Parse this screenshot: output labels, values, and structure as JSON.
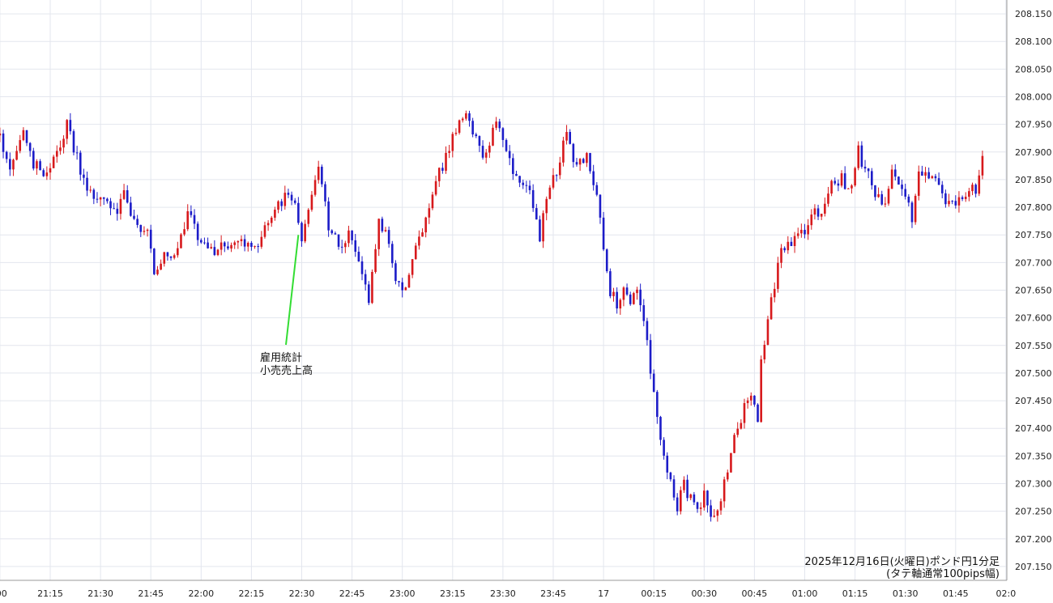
{
  "chart_data": {
    "type": "candlestick",
    "title": "2025年12月16日(火曜日)ポンド円1分足",
    "subtitle": "(タテ軸通常100pips幅)",
    "ylim": [
      207.125,
      208.175
    ],
    "y_ticks": [
      207.15,
      207.2,
      207.25,
      207.3,
      207.35,
      207.4,
      207.45,
      207.5,
      207.55,
      207.6,
      207.65,
      207.7,
      207.75,
      207.8,
      207.85,
      207.9,
      207.95,
      208.0,
      208.05,
      208.1,
      208.15
    ],
    "y_tick_labels": [
      "207.150",
      "207.200",
      "207.250",
      "207.300",
      "207.350",
      "207.400",
      "207.450",
      "207.500",
      "207.550",
      "207.600",
      "207.650",
      "207.700",
      "207.750",
      "207.800",
      "207.850",
      "207.900",
      "207.950",
      "208.000",
      "208.050",
      "208.100",
      "208.150"
    ],
    "x_ticks": [
      {
        "label": ":00",
        "t": -15
      },
      {
        "label": "21:15",
        "t": 0
      },
      {
        "label": "21:30",
        "t": 15
      },
      {
        "label": "21:45",
        "t": 30
      },
      {
        "label": "22:00",
        "t": 45
      },
      {
        "label": "22:15",
        "t": 60
      },
      {
        "label": "22:30",
        "t": 75
      },
      {
        "label": "22:45",
        "t": 90
      },
      {
        "label": "23:00",
        "t": 105
      },
      {
        "label": "23:15",
        "t": 120
      },
      {
        "label": "23:30",
        "t": 135
      },
      {
        "label": "23:45",
        "t": 150
      },
      {
        "label": "17",
        "t": 165
      },
      {
        "label": "00:15",
        "t": 180
      },
      {
        "label": "00:30",
        "t": 195
      },
      {
        "label": "00:45",
        "t": 210
      },
      {
        "label": "01:00",
        "t": 225
      },
      {
        "label": "01:15",
        "t": 240
      },
      {
        "label": "01:30",
        "t": 255
      },
      {
        "label": "01:45",
        "t": 270
      },
      {
        "label": "02:0",
        "t": 285
      }
    ],
    "annotation": {
      "lines": [
        "雇用統計",
        "小売売上高"
      ],
      "t": 74,
      "price": 207.75
    },
    "colors": {
      "up": "#d7191c",
      "down": "#1c1cc8",
      "grid": "#e3e6ee",
      "annotation_line": "#33dd33",
      "axis": "#9a9a9a"
    },
    "price_path": [
      [
        -15,
        207.93
      ],
      [
        -12,
        207.87
      ],
      [
        -8,
        207.93
      ],
      [
        -5,
        207.88
      ],
      [
        -2,
        207.86
      ],
      [
        1,
        207.89
      ],
      [
        5,
        207.95
      ],
      [
        7,
        207.91
      ],
      [
        10,
        207.85
      ],
      [
        12,
        207.82
      ],
      [
        17,
        207.81
      ],
      [
        20,
        207.8
      ],
      [
        22,
        207.83
      ],
      [
        25,
        207.77
      ],
      [
        29,
        207.75
      ],
      [
        31,
        207.69
      ],
      [
        35,
        207.72
      ],
      [
        38,
        207.72
      ],
      [
        41,
        207.79
      ],
      [
        44,
        207.75
      ],
      [
        49,
        207.72
      ],
      [
        55,
        207.74
      ],
      [
        60,
        207.72
      ],
      [
        63,
        207.75
      ],
      [
        67,
        207.79
      ],
      [
        71,
        207.83
      ],
      [
        73,
        207.8
      ],
      [
        75,
        207.74
      ],
      [
        78,
        207.83
      ],
      [
        80,
        207.88
      ],
      [
        83,
        207.76
      ],
      [
        86,
        207.73
      ],
      [
        89,
        207.75
      ],
      [
        92,
        207.7
      ],
      [
        95,
        207.63
      ],
      [
        98,
        207.78
      ],
      [
        101,
        207.74
      ],
      [
        103,
        207.67
      ],
      [
        106,
        207.65
      ],
      [
        109,
        207.72
      ],
      [
        112,
        207.78
      ],
      [
        116,
        207.86
      ],
      [
        120,
        207.93
      ],
      [
        123,
        207.97
      ],
      [
        127,
        207.93
      ],
      [
        129,
        207.88
      ],
      [
        133,
        207.95
      ],
      [
        135,
        207.93
      ],
      [
        137,
        207.88
      ],
      [
        140,
        207.85
      ],
      [
        143,
        207.82
      ],
      [
        146,
        207.75
      ],
      [
        149,
        207.84
      ],
      [
        151,
        207.87
      ],
      [
        154,
        207.93
      ],
      [
        157,
        207.87
      ],
      [
        160,
        207.9
      ],
      [
        163,
        207.82
      ],
      [
        165,
        207.72
      ],
      [
        167,
        207.65
      ],
      [
        169,
        207.62
      ],
      [
        171,
        207.65
      ],
      [
        173,
        207.62
      ],
      [
        175,
        207.66
      ],
      [
        177,
        207.6
      ],
      [
        179,
        207.5
      ],
      [
        181,
        207.42
      ],
      [
        183,
        207.35
      ],
      [
        185,
        207.3
      ],
      [
        187,
        207.26
      ],
      [
        189,
        207.3
      ],
      [
        191,
        207.27
      ],
      [
        193,
        207.25
      ],
      [
        195,
        207.28
      ],
      [
        197,
        207.23
      ],
      [
        199,
        207.26
      ],
      [
        201,
        207.3
      ],
      [
        203,
        207.36
      ],
      [
        205,
        207.4
      ],
      [
        207,
        207.44
      ],
      [
        209,
        207.47
      ],
      [
        211,
        207.42
      ],
      [
        212,
        207.52
      ],
      [
        214,
        207.6
      ],
      [
        216,
        207.66
      ],
      [
        218,
        207.72
      ],
      [
        221,
        207.74
      ],
      [
        224,
        207.75
      ],
      [
        227,
        207.78
      ],
      [
        230,
        207.8
      ],
      [
        233,
        207.84
      ],
      [
        236,
        207.85
      ],
      [
        239,
        207.83
      ],
      [
        241,
        207.9
      ],
      [
        243,
        207.87
      ],
      [
        246,
        207.83
      ],
      [
        249,
        207.8
      ],
      [
        251,
        207.86
      ],
      [
        254,
        207.84
      ],
      [
        257,
        207.78
      ],
      [
        259,
        207.87
      ],
      [
        262,
        207.86
      ],
      [
        265,
        207.84
      ],
      [
        267,
        207.8
      ],
      [
        270,
        207.8
      ],
      [
        273,
        207.83
      ],
      [
        276,
        207.83
      ],
      [
        278,
        207.9
      ]
    ],
    "noise_amplitude": 0.012,
    "wick_amplitude": 0.013
  }
}
